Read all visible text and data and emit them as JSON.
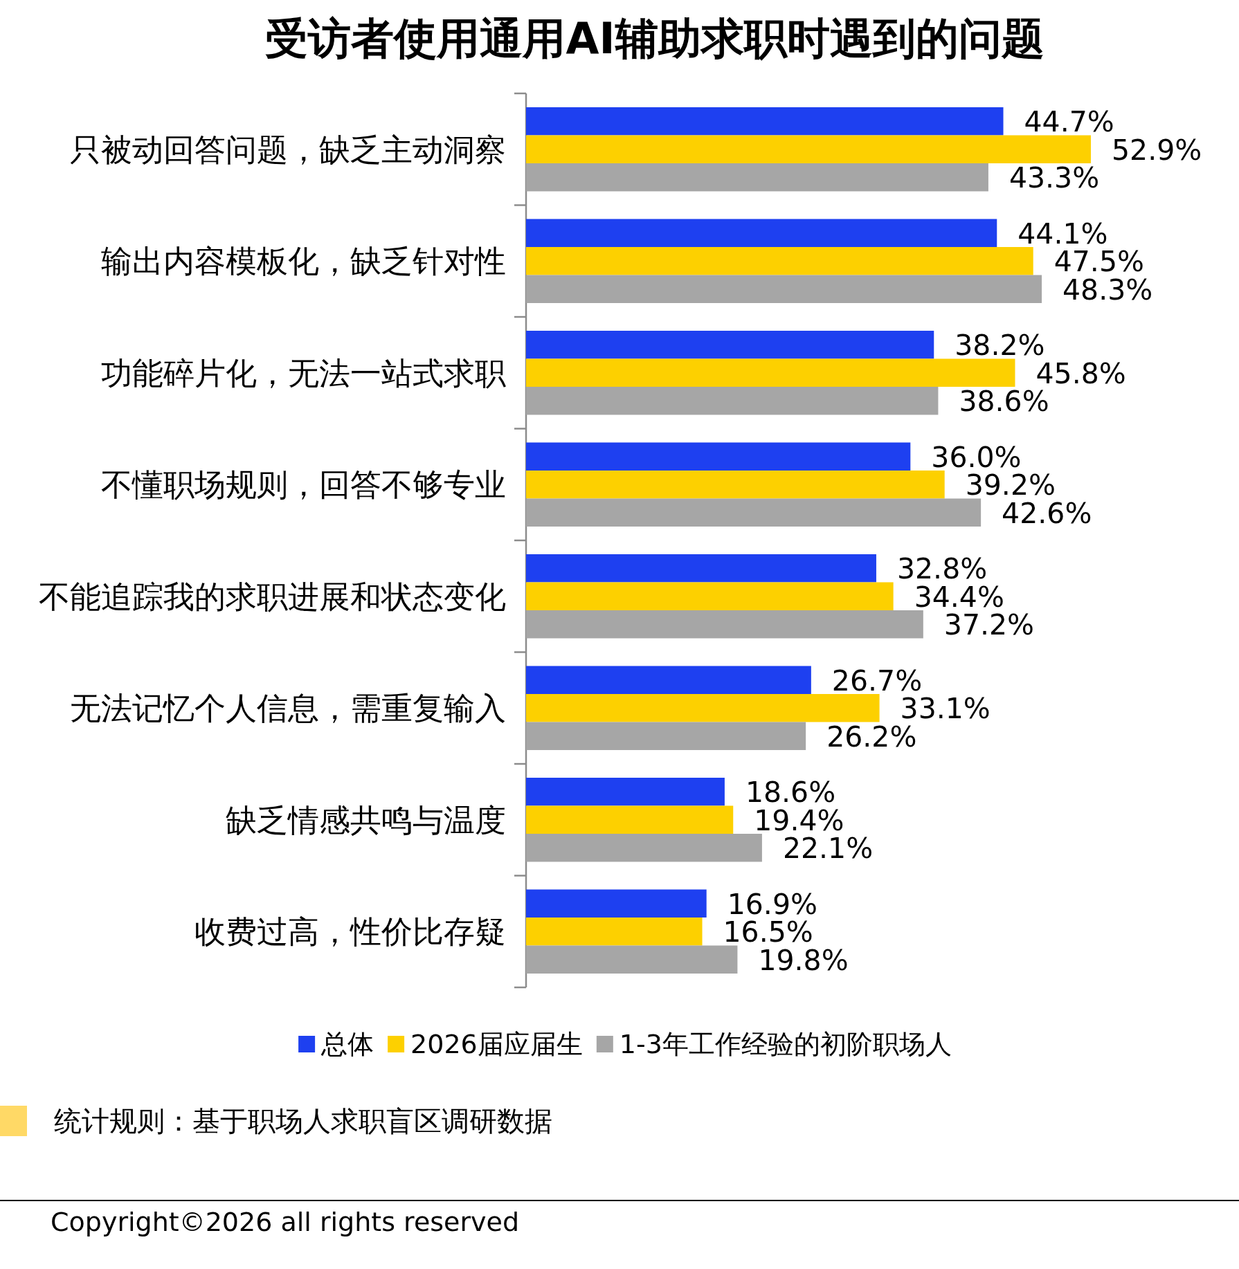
{
  "chart_data": {
    "type": "bar",
    "orientation": "horizontal",
    "title": "受访者使用通用AI辅助求职时遇到的问题",
    "categories": [
      "只被动回答问题，缺乏主动洞察",
      "输出内容模板化，缺乏针对性",
      "功能碎片化，无法一站式求职",
      "不懂职场规则，回答不够专业",
      "不能追踪我的求职进展和状态变化",
      "无法记忆个人信息，需重复输入",
      "缺乏情感共鸣与温度",
      "收费过高，性价比存疑"
    ],
    "series": [
      {
        "name": "总体",
        "color": "#1e40f0",
        "values": [
          44.7,
          44.1,
          38.2,
          36.0,
          32.8,
          26.7,
          18.6,
          16.9
        ],
        "value_labels": [
          "44.7%",
          "44.1%",
          "38.2%",
          "36.0%",
          "32.8%",
          "26.7%",
          "18.6%",
          "16.9%"
        ]
      },
      {
        "name": "2026届应届生",
        "color": "#fdd000",
        "values": [
          52.9,
          47.5,
          45.8,
          39.2,
          34.4,
          33.1,
          19.4,
          16.5
        ],
        "value_labels": [
          "52.9%",
          "47.5%",
          "45.8%",
          "39.2%",
          "34.4%",
          "33.1%",
          "19.4%",
          "16.5%"
        ]
      },
      {
        "name": "1-3年工作经验的初阶职场人",
        "color": "#a6a6a6",
        "values": [
          43.3,
          48.3,
          38.6,
          42.6,
          37.2,
          26.2,
          22.1,
          19.8
        ],
        "value_labels": [
          "43.3%",
          "48.3%",
          "38.6%",
          "42.6%",
          "37.2%",
          "26.2%",
          "22.1%",
          "19.8%"
        ]
      }
    ],
    "legend": "bottom",
    "annotations": [
      "统计规则：基于职场人求职盲区调研数据",
      "Copyright©2026 all rights reserved"
    ]
  }
}
